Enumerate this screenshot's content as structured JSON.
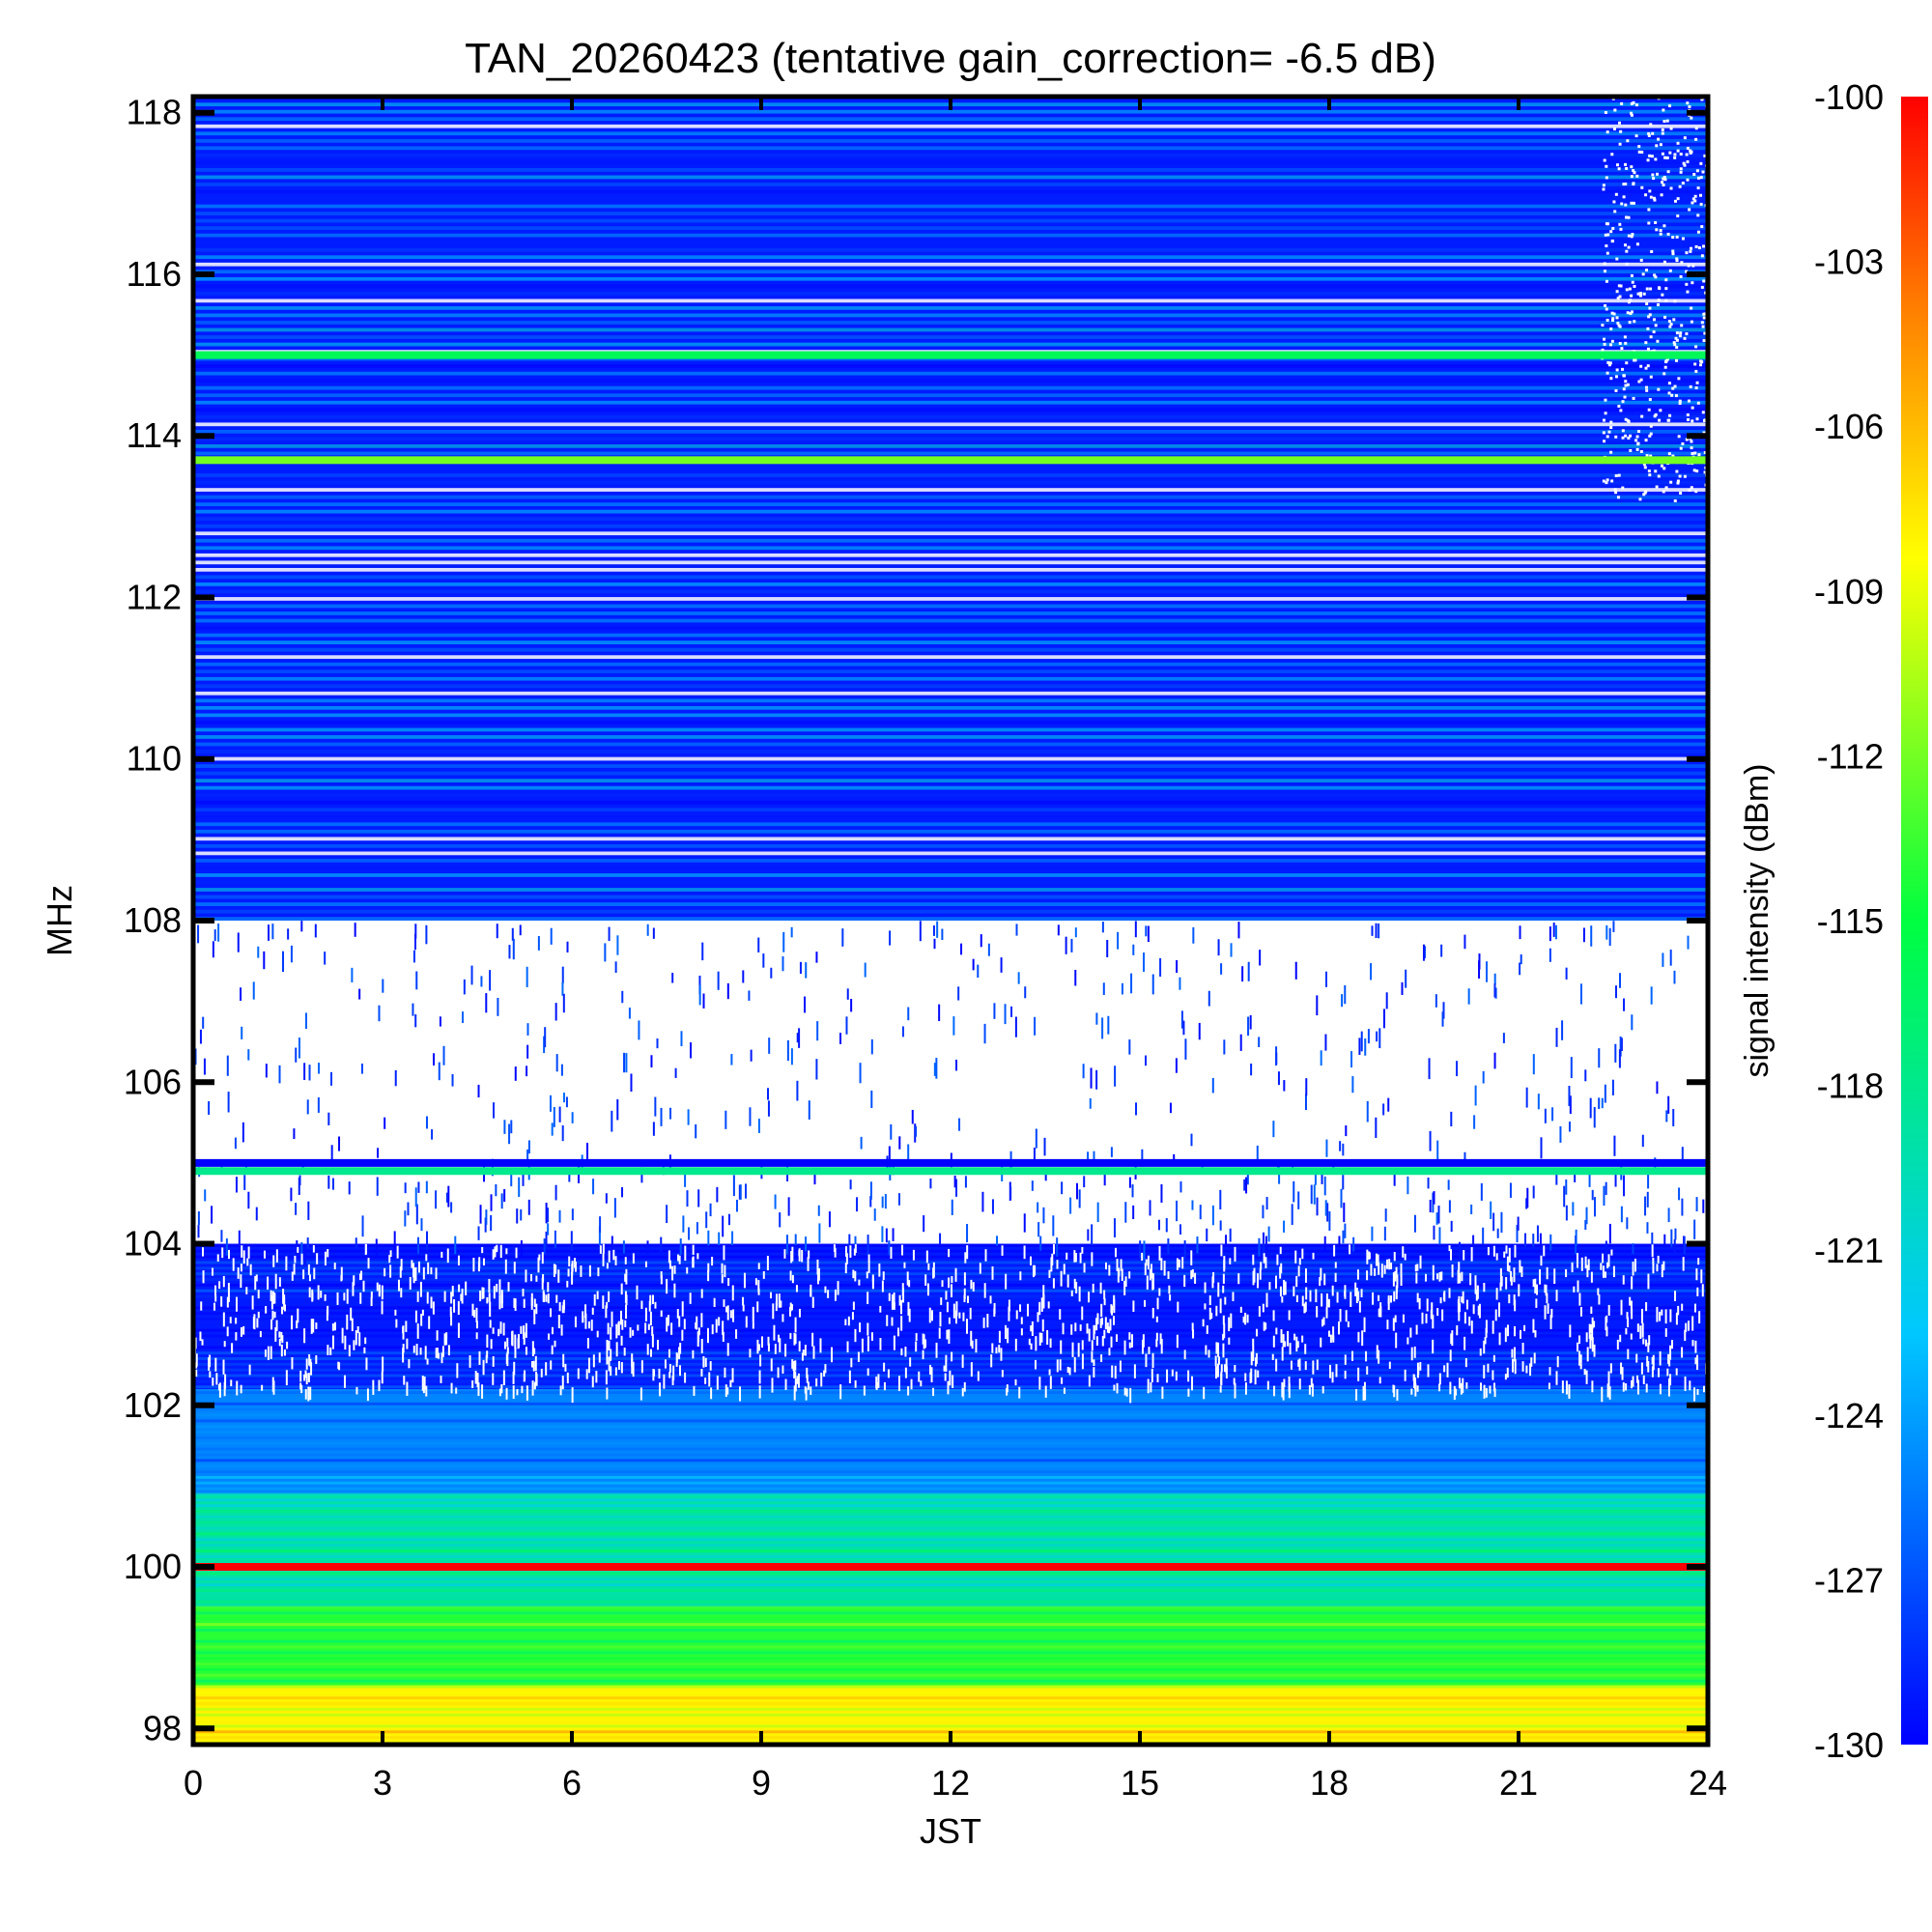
{
  "chart_data": {
    "type": "heatmap",
    "title": "TAN_20260423 (tentative gain_correction= -6.5 dB)",
    "xlabel": "JST",
    "ylabel": "MHz",
    "colorbar_label": "signal intensity (dBm)",
    "xlim": [
      0,
      24
    ],
    "ylim": [
      97.8,
      118.2
    ],
    "x_ticks": [
      "0",
      "3",
      "6",
      "9",
      "12",
      "15",
      "18",
      "21",
      "24"
    ],
    "y_ticks": [
      "98",
      "100",
      "102",
      "104",
      "106",
      "108",
      "110",
      "112",
      "114",
      "116",
      "118"
    ],
    "colorbar_ticks": [
      "-100",
      "-103",
      "-106",
      "-109",
      "-112",
      "-115",
      "-118",
      "-121",
      "-124",
      "-127",
      "-130"
    ],
    "color_range": [
      -130,
      -100
    ],
    "colormap": [
      "#0000ff",
      "#00c8ff",
      "#00ff40",
      "#ffff00",
      "#ff8000",
      "#ff0000"
    ],
    "strong_lines": [
      {
        "freq_mhz": 100.0,
        "level_dbm": -100
      },
      {
        "freq_mhz": 104.9,
        "level_dbm": -118
      },
      {
        "freq_mhz": 105.0,
        "level_dbm": -130
      },
      {
        "freq_mhz": 113.7,
        "level_dbm": -112
      },
      {
        "freq_mhz": 115.0,
        "level_dbm": -116
      }
    ],
    "bands": [
      {
        "from_mhz": 97.8,
        "to_mhz": 98.5,
        "level_dbm": -108
      },
      {
        "from_mhz": 98.5,
        "to_mhz": 99.5,
        "level_dbm": -114
      },
      {
        "from_mhz": 99.5,
        "to_mhz": 100.9,
        "level_dbm": -119
      },
      {
        "from_mhz": 100.9,
        "to_mhz": 102.2,
        "level_dbm": -125
      },
      {
        "from_mhz": 102.2,
        "to_mhz": 104.0,
        "level_dbm": -129
      },
      {
        "from_mhz": 108.0,
        "to_mhz": 118.2,
        "level_dbm": -129
      }
    ],
    "sparse_region_mhz": [
      105.1,
      108.0
    ]
  }
}
